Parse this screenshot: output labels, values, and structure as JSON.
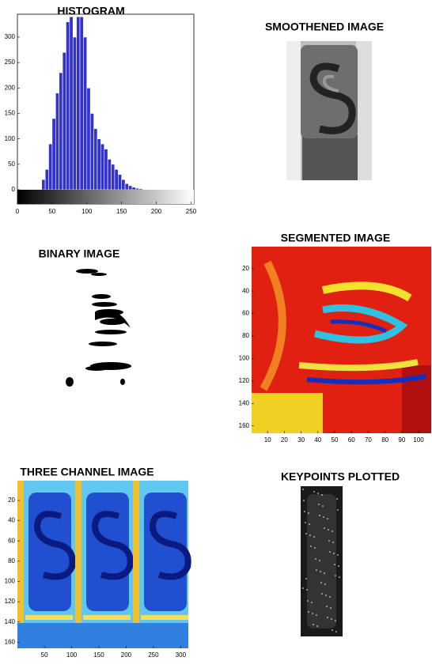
{
  "chart_data": [
    {
      "type": "histogram",
      "title": "HISTOGRAM",
      "bins": [
        0,
        5,
        10,
        15,
        20,
        25,
        30,
        35,
        40,
        45,
        50,
        55,
        60,
        65,
        70,
        75,
        80,
        85,
        90,
        95,
        100,
        105,
        110,
        115,
        120,
        125,
        130,
        135,
        140,
        145,
        150,
        155,
        160,
        165,
        170,
        175,
        180,
        185,
        190,
        195,
        200,
        205,
        210,
        215,
        220,
        225,
        230,
        235,
        240,
        245,
        250,
        255,
        260
      ],
      "counts": [
        0,
        0,
        0,
        0,
        0,
        0,
        0,
        20,
        40,
        90,
        140,
        190,
        230,
        270,
        330,
        340,
        300,
        340,
        340,
        300,
        200,
        150,
        120,
        100,
        90,
        80,
        60,
        50,
        40,
        30,
        20,
        12,
        8,
        5,
        3,
        2,
        0,
        0,
        0,
        0,
        0,
        0,
        0,
        0,
        0,
        0,
        0,
        0,
        0,
        0,
        0,
        0
      ],
      "color": "#3333cc",
      "xlim": [
        0,
        254
      ],
      "ylim": [
        -28,
        345
      ],
      "xticks": [
        0,
        50,
        100,
        150,
        200,
        250
      ],
      "yticks": [
        0,
        50,
        100,
        150,
        200,
        250,
        300
      ]
    },
    {
      "type": "image",
      "title": "SMOOTHENED IMAGE"
    },
    {
      "type": "image",
      "title": "BINARY IMAGE"
    },
    {
      "type": "image",
      "title": "SEGMENTED IMAGE",
      "xlim": [
        0.5,
        107.5
      ],
      "ylim": [
        0.5,
        166.5
      ],
      "xticks": [
        10,
        20,
        30,
        40,
        50,
        60,
        70,
        80,
        90,
        100
      ],
      "yticks": [
        20,
        40,
        60,
        80,
        100,
        120,
        140,
        160
      ]
    },
    {
      "type": "image",
      "title": "THREE CHANNEL IMAGE",
      "xlim": [
        0.5,
        314
      ],
      "ylim": [
        0.5,
        166
      ],
      "xticks": [
        50,
        100,
        150,
        200,
        250,
        300
      ],
      "yticks": [
        20,
        40,
        60,
        80,
        100,
        120,
        140,
        160
      ]
    },
    {
      "type": "image",
      "title": "KEYPOINTS PLOTTED"
    }
  ]
}
